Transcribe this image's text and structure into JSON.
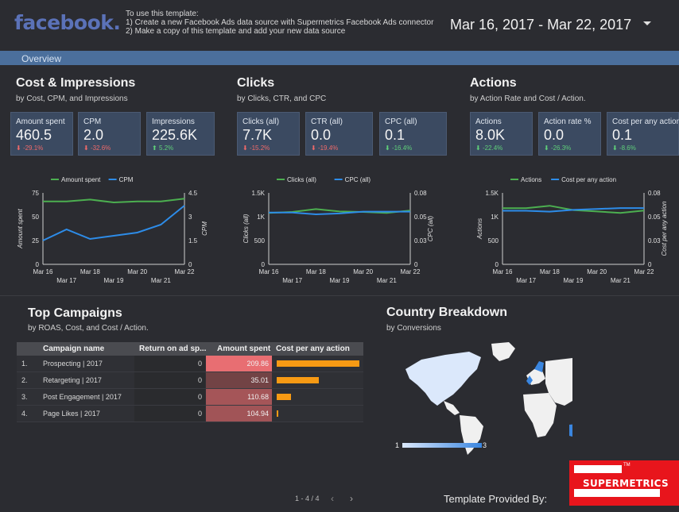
{
  "header": {
    "logo_text": "facebook",
    "logo_dot": ".",
    "instructions": [
      "To use this template:",
      "1) Create a new Facebook Ads data source with Supermetrics Facebook Ads connector",
      "2) Make a copy of this template and add your new data source"
    ],
    "date_range": "Mar 16, 2017 - Mar 22, 2017"
  },
  "nav": {
    "tab": "Overview"
  },
  "sections": {
    "cost": {
      "title": "Cost & Impressions",
      "subtitle": "by Cost, CPM, and Impressions"
    },
    "clicks": {
      "title": "Clicks",
      "subtitle": "by Clicks, CTR, and CPC"
    },
    "actions": {
      "title": "Actions",
      "subtitle": "by Action Rate and Cost / Action."
    },
    "campaigns": {
      "title": "Top Campaigns",
      "subtitle": "by ROAS, Cost, and Cost / Action."
    },
    "country": {
      "title": "Country Breakdown",
      "subtitle": "by Conversions"
    }
  },
  "kpis": [
    {
      "label": "Amount spent",
      "value": "460.5",
      "change": "-29.1%",
      "dir": "neg"
    },
    {
      "label": "CPM",
      "value": "2.0",
      "change": "-32.6%",
      "dir": "neg"
    },
    {
      "label": "Impressions",
      "value": "225.6K",
      "change": "5.2%",
      "dir": "pos"
    },
    {
      "label": "Clicks (all)",
      "value": "7.7K",
      "change": "-15.2%",
      "dir": "neg"
    },
    {
      "label": "CTR (all)",
      "value": "0.0",
      "change": "-19.4%",
      "dir": "neg"
    },
    {
      "label": "CPC (all)",
      "value": "0.1",
      "change": "-16.4%",
      "dir": "pos"
    },
    {
      "label": "Actions",
      "value": "8.0K",
      "change": "-22.4%",
      "dir": "pos"
    },
    {
      "label": "Action rate %",
      "value": "0.0",
      "change": "-26.3%",
      "dir": "pos"
    },
    {
      "label": "Cost per any action",
      "value": "0.1",
      "change": "-8.6%",
      "dir": "pos"
    }
  ],
  "chart_data": [
    {
      "type": "line",
      "x": [
        "Mar 16",
        "Mar 17",
        "Mar 18",
        "Mar 19",
        "Mar 20",
        "Mar 21",
        "Mar 22"
      ],
      "series": [
        {
          "name": "Amount spent",
          "axis": "left",
          "color": "#4caf50",
          "values": [
            66,
            66,
            68,
            65,
            66,
            66,
            69
          ]
        },
        {
          "name": "CPM",
          "axis": "right",
          "color": "#2d8ce8",
          "values": [
            1.5,
            2.2,
            1.6,
            1.8,
            2.0,
            2.5,
            3.7
          ]
        }
      ],
      "ylabel": "Amount spent",
      "y2label": "CPM",
      "ylim": [
        0,
        75
      ],
      "y2lim": [
        0,
        4.5
      ],
      "yticks": [
        "0",
        "25",
        "50",
        "75"
      ],
      "y2ticks": [
        "0",
        "1.5",
        "3",
        "4.5"
      ]
    },
    {
      "type": "line",
      "x": [
        "Mar 16",
        "Mar 17",
        "Mar 18",
        "Mar 19",
        "Mar 20",
        "Mar 21",
        "Mar 22"
      ],
      "series": [
        {
          "name": "Clicks (all)",
          "axis": "left",
          "color": "#4caf50",
          "values": [
            1080,
            1100,
            1160,
            1110,
            1100,
            1080,
            1130
          ]
        },
        {
          "name": "CPC (all)",
          "axis": "right",
          "color": "#2d8ce8",
          "values": [
            0.058,
            0.058,
            0.056,
            0.057,
            0.059,
            0.059,
            0.059
          ]
        }
      ],
      "ylabel": "Clicks (all)",
      "y2label": "CPC (all)",
      "ylim": [
        0,
        1500
      ],
      "y2lim": [
        0,
        0.08
      ],
      "yticks": [
        "0",
        "500",
        "1K",
        "1.5K"
      ],
      "y2ticks": [
        "0",
        "0.03",
        "0.05",
        "0.08"
      ]
    },
    {
      "type": "line",
      "x": [
        "Mar 16",
        "Mar 17",
        "Mar 18",
        "Mar 19",
        "Mar 20",
        "Mar 21",
        "Mar 22"
      ],
      "series": [
        {
          "name": "Actions",
          "axis": "left",
          "color": "#4caf50",
          "values": [
            1180,
            1180,
            1230,
            1140,
            1110,
            1080,
            1130
          ]
        },
        {
          "name": "Cost per any action",
          "axis": "right",
          "color": "#2d8ce8",
          "values": [
            0.06,
            0.06,
            0.059,
            0.061,
            0.062,
            0.063,
            0.063
          ]
        }
      ],
      "ylabel": "Actions",
      "y2label": "Cost per any action",
      "ylim": [
        0,
        1500
      ],
      "y2lim": [
        0,
        0.08
      ],
      "yticks": [
        "0",
        "500",
        "1K",
        "1.5K"
      ],
      "y2ticks": [
        "0",
        "0.03",
        "0.05",
        "0.08"
      ]
    }
  ],
  "campaigns": {
    "columns": [
      "Campaign name",
      "Return on ad sp...",
      "Amount spent",
      "Cost per any action"
    ],
    "rows": [
      {
        "idx": "1.",
        "name": "Prospecting | 2017",
        "roas": "0",
        "amount": "209.86",
        "amount_value": 209.86,
        "cpa_value": 0.1
      },
      {
        "idx": "2.",
        "name": "Retargeting | 2017",
        "roas": "0",
        "amount": "35.01",
        "amount_value": 35.01,
        "cpa_value": 0.051
      },
      {
        "idx": "3.",
        "name": "Post Engagement | 2017",
        "roas": "0",
        "amount": "110.68",
        "amount_value": 110.68,
        "cpa_value": 0.017
      },
      {
        "idx": "4.",
        "name": "Page Likes | 2017",
        "roas": "0",
        "amount": "104.94",
        "amount_value": 104.94,
        "cpa_value": 0.002
      }
    ],
    "pager": "1 - 4 / 4"
  },
  "map_legend": {
    "min": "1",
    "max": "3"
  },
  "footer": {
    "provided_by": "Template Provided By:",
    "brand": "SUPERMETRICS",
    "tm": "TM"
  }
}
